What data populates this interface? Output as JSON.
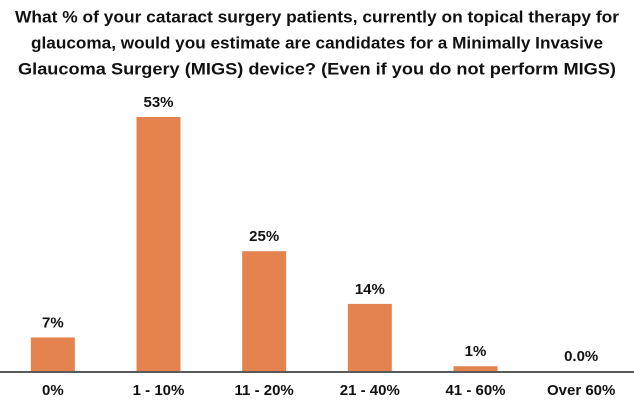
{
  "chart_data": {
    "type": "bar",
    "title": [
      "What % of your cataract surgery patients, currently on topical therapy for",
      "glaucoma, would you estimate are candidates for a Minimally Invasive",
      "Glaucoma Surgery (MIGS) device? (Even if you do not perform MIGS)"
    ],
    "categories": [
      "0%",
      "1 - 10%",
      "11 - 20%",
      "21 - 40%",
      "41 - 60%",
      "Over 60%"
    ],
    "values": [
      7,
      53,
      25,
      14,
      1,
      0
    ],
    "value_labels": [
      "7%",
      "53%",
      "25%",
      "14%",
      "1%",
      "0.0%"
    ],
    "color": "#e5834f"
  }
}
